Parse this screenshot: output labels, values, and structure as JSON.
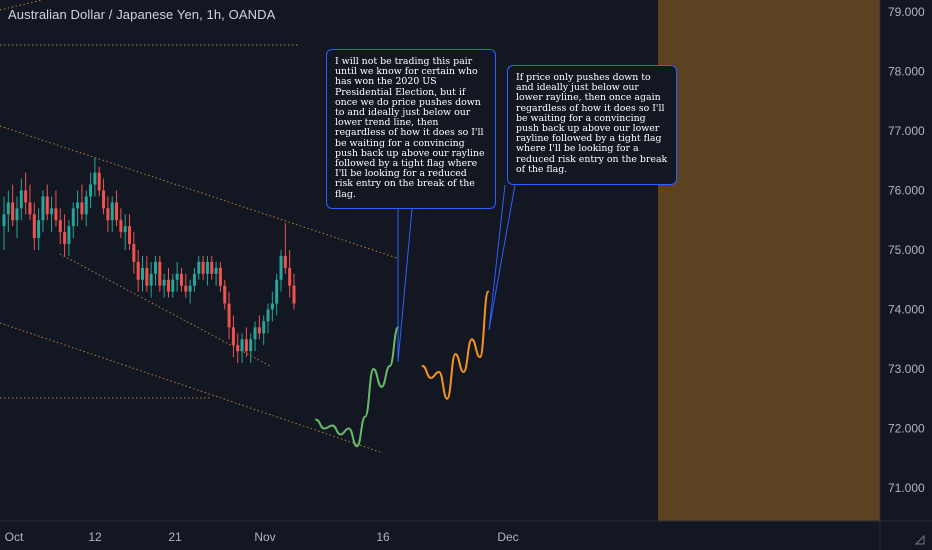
{
  "header": {
    "title": "Australian Dollar / Japanese Yen, 1h, OANDA"
  },
  "annotations": {
    "note_1": "I will not be trading this pair until we know for certain who has won the 2020 US Presidential Election, but if once we do price pushes down to and ideally just below our lower trend line, then regardless of how it does so I'll be waiting for a convincing push back up above our rayline followed by a tight flag where I'll be looking for a reduced risk entry on the break of the flag.",
    "note_2": "If price only pushes down to and ideally just below our lower rayline, then once again regardless of how it does so I'll be waiting for a convincing push back up above our lower rayline followed by a tight flag where I'll be looking for a reduced risk entry on the break of the flag."
  },
  "colors": {
    "background": "#131722",
    "candle_up": "#26a69a",
    "candle_down": "#ef5350",
    "trendline": "#c9893b",
    "green_path": "#66bb6a",
    "orange_path": "#f7931e",
    "future_zone": "#5d4222",
    "axis_text": "#b2b5be",
    "note_border": "#2962ff"
  },
  "chart_data": {
    "type": "candlestick",
    "symbol": "Australian Dollar / Japanese Yen",
    "timeframe": "1h",
    "source": "OANDA",
    "y_axis": {
      "side": "right",
      "range": [
        70.6,
        79.2
      ],
      "ticks": [
        "79.000",
        "78.000",
        "77.000",
        "76.000",
        "75.000",
        "74.000",
        "73.000",
        "72.000",
        "71.000"
      ]
    },
    "x_axis": {
      "ticks": [
        "Oct",
        "12",
        "21",
        "Nov",
        "16",
        "Dec"
      ]
    },
    "ohlc": [
      [
        75.4,
        75.9,
        75.0,
        75.6
      ],
      [
        75.6,
        76.0,
        75.3,
        75.8
      ],
      [
        75.8,
        76.1,
        75.4,
        75.5
      ],
      [
        75.5,
        75.9,
        75.2,
        75.7
      ],
      [
        75.7,
        76.2,
        75.5,
        76.0
      ],
      [
        76.0,
        76.3,
        75.6,
        75.8
      ],
      [
        75.8,
        76.1,
        75.5,
        75.6
      ],
      [
        75.6,
        75.8,
        75.0,
        75.2
      ],
      [
        75.2,
        75.7,
        75.0,
        75.5
      ],
      [
        75.5,
        76.0,
        75.3,
        75.9
      ],
      [
        75.9,
        76.1,
        75.5,
        75.6
      ],
      [
        75.6,
        75.9,
        75.3,
        75.7
      ],
      [
        75.7,
        76.0,
        75.4,
        75.5
      ],
      [
        75.5,
        75.7,
        75.1,
        75.3
      ],
      [
        75.3,
        75.6,
        74.9,
        75.1
      ],
      [
        75.1,
        75.5,
        74.9,
        75.4
      ],
      [
        75.4,
        75.8,
        75.2,
        75.7
      ],
      [
        75.7,
        76.0,
        75.4,
        75.8
      ],
      [
        75.8,
        76.1,
        75.5,
        75.6
      ],
      [
        75.6,
        76.0,
        75.4,
        75.9
      ],
      [
        75.9,
        76.3,
        75.7,
        76.1
      ],
      [
        76.1,
        76.55,
        75.9,
        76.3
      ],
      [
        76.3,
        76.4,
        75.9,
        76.0
      ],
      [
        76.0,
        76.2,
        75.6,
        75.7
      ],
      [
        75.7,
        75.9,
        75.3,
        75.5
      ],
      [
        75.5,
        75.9,
        75.3,
        75.8
      ],
      [
        75.8,
        76.0,
        75.4,
        75.5
      ],
      [
        75.5,
        75.7,
        75.2,
        75.3
      ],
      [
        75.3,
        75.6,
        75.0,
        75.4
      ],
      [
        75.4,
        75.6,
        75.0,
        75.1
      ],
      [
        75.1,
        75.3,
        74.6,
        74.8
      ],
      [
        74.8,
        75.0,
        74.3,
        74.5
      ],
      [
        74.5,
        74.9,
        74.3,
        74.7
      ],
      [
        74.7,
        74.9,
        74.3,
        74.4
      ],
      [
        74.4,
        74.8,
        74.2,
        74.6
      ],
      [
        74.6,
        74.9,
        74.4,
        74.8
      ],
      [
        74.8,
        74.9,
        74.3,
        74.4
      ],
      [
        74.4,
        74.6,
        74.2,
        74.5
      ],
      [
        74.5,
        74.7,
        74.2,
        74.3
      ],
      [
        74.3,
        74.6,
        74.2,
        74.5
      ],
      [
        74.5,
        74.8,
        74.3,
        74.6
      ],
      [
        74.6,
        74.7,
        74.3,
        74.4
      ],
      [
        74.4,
        74.6,
        74.2,
        74.3
      ],
      [
        74.3,
        74.5,
        74.1,
        74.4
      ],
      [
        74.4,
        74.7,
        74.3,
        74.6
      ],
      [
        74.6,
        74.9,
        74.5,
        74.8
      ],
      [
        74.8,
        74.9,
        74.5,
        74.6
      ],
      [
        74.6,
        74.9,
        74.4,
        74.8
      ],
      [
        74.8,
        74.9,
        74.5,
        74.6
      ],
      [
        74.6,
        74.8,
        74.4,
        74.7
      ],
      [
        74.7,
        74.8,
        74.3,
        74.4
      ],
      [
        74.4,
        74.5,
        74.0,
        74.1
      ],
      [
        74.1,
        74.3,
        73.5,
        73.7
      ],
      [
        73.7,
        73.9,
        73.2,
        73.4
      ],
      [
        73.4,
        73.6,
        73.1,
        73.3
      ],
      [
        73.3,
        73.6,
        73.1,
        73.5
      ],
      [
        73.5,
        73.7,
        73.2,
        73.3
      ],
      [
        73.3,
        73.6,
        73.1,
        73.5
      ],
      [
        73.5,
        73.8,
        73.3,
        73.7
      ],
      [
        73.7,
        73.9,
        73.5,
        73.6
      ],
      [
        73.6,
        73.9,
        73.4,
        73.8
      ],
      [
        73.8,
        74.1,
        73.6,
        74.0
      ],
      [
        74.0,
        74.3,
        73.8,
        74.1
      ],
      [
        74.1,
        74.6,
        73.9,
        74.5
      ],
      [
        74.5,
        75.0,
        74.3,
        74.9
      ],
      [
        74.9,
        75.45,
        74.6,
        74.7
      ],
      [
        74.7,
        75.0,
        74.2,
        74.4
      ],
      [
        74.4,
        74.6,
        74.0,
        74.1
      ]
    ],
    "projections": [
      {
        "color": "green",
        "points": [
          [
            18,
            72.15
          ],
          [
            19,
            72.0
          ],
          [
            20,
            72.05
          ],
          [
            21,
            71.9
          ],
          [
            22,
            72.0
          ],
          [
            23,
            71.7
          ],
          [
            24,
            72.2
          ],
          [
            25,
            73.0
          ],
          [
            26,
            72.7
          ],
          [
            27,
            73.05
          ],
          [
            28,
            73.7
          ]
        ]
      },
      {
        "color": "orange",
        "points": [
          [
            31,
            73.05
          ],
          [
            32,
            72.85
          ],
          [
            33,
            72.95
          ],
          [
            34,
            72.5
          ],
          [
            35,
            73.25
          ],
          [
            36,
            72.95
          ],
          [
            37,
            73.5
          ],
          [
            38,
            73.2
          ],
          [
            39,
            74.3
          ]
        ]
      }
    ]
  }
}
